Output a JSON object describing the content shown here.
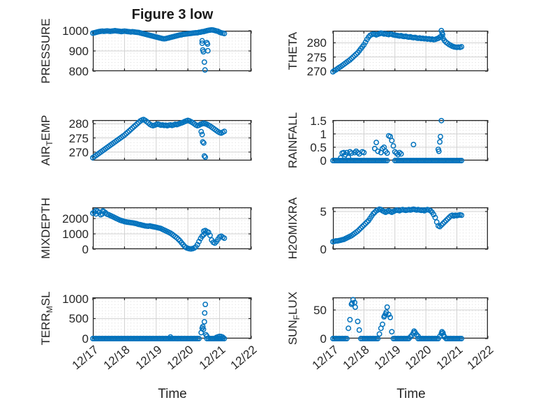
{
  "figure_title": "Figure 3 low",
  "x_axis": {
    "label": "Time",
    "ticks": [
      "12/17",
      "12/18",
      "12/19",
      "12/20",
      "12/21",
      "12/22"
    ],
    "tick_values": [
      0,
      1,
      2,
      3,
      4,
      5
    ],
    "xlim": [
      0,
      5
    ],
    "minor_step": 0.1
  },
  "marker": {
    "color": "#0072BD",
    "radius": 3.2,
    "stroke_width": 1.5
  },
  "grid": {
    "major_color": "#d0d0d0",
    "minor_color": "#d9d9d9",
    "box_color": "#262626"
  },
  "chart_data": [
    {
      "type": "scatter",
      "name": "pressure",
      "ylabel": "PRESSURE",
      "ylabel_parts": [
        [
          "PRESSURE",
          false
        ]
      ],
      "yticks": [
        {
          "v": 800,
          "label": "800"
        },
        {
          "v": 900,
          "label": "900"
        },
        {
          "v": 1000,
          "label": "1000"
        }
      ],
      "ylim": [
        800,
        1000
      ],
      "t0": 0,
      "dt": 0.05,
      "values": [
        988,
        990,
        992,
        994,
        996,
        997,
        998,
        997,
        998,
        999,
        998,
        997,
        998,
        999,
        1000,
        999,
        998,
        997,
        996,
        997,
        998,
        997,
        996,
        995,
        994,
        995,
        994,
        993,
        992,
        991,
        989,
        987,
        985,
        983,
        981,
        979,
        977,
        975,
        973,
        971,
        969,
        967,
        965,
        963,
        961,
        960,
        961,
        963,
        965,
        967,
        969,
        971,
        973,
        975,
        977,
        979,
        980,
        982,
        983,
        984,
        985,
        986,
        987,
        988,
        989,
        990,
        990,
        992,
        993,
        995,
        996,
        998,
        1000,
        1002,
        1003,
        1004,
        1003,
        1001,
        999,
        997,
        993,
        990,
        988,
        986
      ],
      "extra_points": [
        [
          3.45,
          950
        ],
        [
          3.45,
          938
        ],
        [
          3.47,
          905
        ],
        [
          3.49,
          896
        ],
        [
          3.52,
          845
        ],
        [
          3.54,
          806
        ],
        [
          3.6,
          941
        ],
        [
          3.62,
          934
        ],
        [
          3.63,
          901
        ]
      ]
    },
    {
      "type": "scatter",
      "name": "theta",
      "ylabel": "THETA",
      "ylabel_parts": [
        [
          "THETA",
          false
        ]
      ],
      "yticks": [
        {
          "v": 270,
          "label": "270"
        },
        {
          "v": 275,
          "label": "275"
        },
        {
          "v": 280,
          "label": "280"
        }
      ],
      "ylim": [
        270,
        284.25
      ],
      "t0": 0,
      "dt": 0.05,
      "values": [
        269.8,
        270.2,
        270.5,
        270.9,
        271.3,
        271.6,
        272,
        272.4,
        272.8,
        273.2,
        273.6,
        274,
        274.5,
        275,
        275.5,
        276,
        276.5,
        277.2,
        277.9,
        278.6,
        279.3,
        280.2,
        281.2,
        282,
        282.6,
        282.9,
        283.1,
        283,
        282.8,
        283,
        283.2,
        283.4,
        283.3,
        283.1,
        283.2,
        283,
        282.9,
        283.1,
        283,
        282.8,
        282.7,
        282.6,
        282.5,
        282.4,
        282.5,
        282.3,
        282.2,
        282.3,
        282.1,
        282,
        282.1,
        281.9,
        281.8,
        281.9,
        281.7,
        281.6,
        281.7,
        281.5,
        281.6,
        281.4,
        281.5,
        281.3,
        281.4,
        281.2,
        281.3,
        281.1,
        281.2,
        281.4,
        281.6,
        282,
        282.3,
        281.6,
        280.8,
        280.2,
        279.8,
        279.4,
        279.1,
        278.8,
        278.6,
        278.5,
        278.4,
        278.5,
        278.4,
        278.6
      ],
      "extra_points": [
        [
          3.5,
          284.3
        ],
        [
          3.52,
          283.5
        ],
        [
          3.54,
          282.9
        ]
      ]
    },
    {
      "type": "scatter",
      "name": "air_temp",
      "ylabel": "AIR_TEMP",
      "ylabel_parts": [
        [
          "AIR",
          false
        ],
        [
          "T",
          true
        ],
        [
          "EMP",
          false
        ]
      ],
      "yticks": [
        {
          "v": 270,
          "label": "270"
        },
        {
          "v": 275,
          "label": "275"
        },
        {
          "v": 280,
          "label": "280"
        }
      ],
      "ylim": [
        267,
        281.3
      ],
      "t0": 0,
      "dt": 0.05,
      "values": [
        268,
        268.4,
        268.8,
        269.2,
        269.6,
        270,
        270.4,
        270.8,
        271.2,
        271.6,
        272,
        272.4,
        272.8,
        273.2,
        273.6,
        274,
        274.4,
        274.8,
        275.2,
        275.6,
        276,
        276.5,
        277,
        277.5,
        278,
        278.5,
        279,
        279.5,
        280,
        280.5,
        281,
        281.3,
        281.5,
        281.2,
        280.8,
        280.3,
        279.8,
        279.5,
        279.3,
        279.5,
        279.7,
        279.9,
        279.7,
        279.5,
        279.6,
        279.4,
        279.5,
        279.3,
        279.5,
        279.6,
        279.4,
        279.6,
        279.8,
        279.7,
        279.9,
        280.1,
        280.3,
        280.5,
        280.8,
        281,
        281.2,
        281,
        280.7,
        280.4,
        280,
        279.6,
        279.3,
        279.5,
        279.8,
        280,
        280.2,
        280,
        279.8,
        279.5,
        279.2,
        278.8,
        278.4,
        278,
        277.6,
        277.2,
        276.9,
        276.7,
        277,
        277.3
      ],
      "extra_points": [
        [
          3.42,
          277.2
        ],
        [
          3.45,
          276.2
        ],
        [
          3.47,
          273.6
        ],
        [
          3.5,
          273.2
        ],
        [
          3.52,
          268.6
        ],
        [
          3.55,
          268.2
        ]
      ]
    },
    {
      "type": "scatter",
      "name": "rainfall",
      "ylabel": "RAINFALL",
      "ylabel_parts": [
        [
          "RAINFALL",
          false
        ]
      ],
      "yticks": [
        {
          "v": 0,
          "label": "0"
        },
        {
          "v": 0.5,
          "label": "0.5"
        },
        {
          "v": 1,
          "label": "1"
        },
        {
          "v": 1.5,
          "label": "1.5"
        }
      ],
      "ylim": [
        0,
        1.52
      ],
      "t0": 0,
      "dt": 0.05,
      "values": [
        0,
        0,
        0,
        0,
        0,
        0,
        0,
        0,
        0,
        0,
        0,
        0,
        0,
        0,
        0,
        0,
        0,
        0,
        0,
        0,
        0,
        0,
        0,
        0,
        0,
        0,
        0,
        0,
        0,
        0,
        0,
        0,
        0,
        0,
        0,
        0,
        null,
        null,
        null,
        null,
        0,
        0,
        0,
        0,
        0,
        0,
        0,
        0,
        0,
        0,
        0,
        0,
        0,
        0,
        0,
        0,
        0,
        0,
        0,
        0,
        0,
        0,
        0,
        0,
        0,
        0,
        0,
        0,
        0,
        0,
        0,
        0,
        0,
        0,
        0,
        0,
        0,
        0,
        0,
        0,
        0,
        0,
        0,
        0
      ],
      "extra_points": [
        [
          0.25,
          0.1
        ],
        [
          0.3,
          0.28
        ],
        [
          0.35,
          0.3
        ],
        [
          0.4,
          0.22
        ],
        [
          0.45,
          0.3
        ],
        [
          0.5,
          0.12
        ],
        [
          0.55,
          0.33
        ],
        [
          0.6,
          0.28
        ],
        [
          0.7,
          0.3
        ],
        [
          0.75,
          0.35
        ],
        [
          0.8,
          0.3
        ],
        [
          0.85,
          0.25
        ],
        [
          0.95,
          0.33
        ],
        [
          1.0,
          0.3
        ],
        [
          1.35,
          0.45
        ],
        [
          1.4,
          0.68
        ],
        [
          1.45,
          0.35
        ],
        [
          1.55,
          0.3
        ],
        [
          1.6,
          0.45
        ],
        [
          1.65,
          0.5
        ],
        [
          1.7,
          0.35
        ],
        [
          1.75,
          0.28
        ],
        [
          1.8,
          0.93
        ],
        [
          1.85,
          0.9
        ],
        [
          1.9,
          0.75
        ],
        [
          1.95,
          0.55
        ],
        [
          2.0,
          0.33
        ],
        [
          2.05,
          0.28
        ],
        [
          2.1,
          0.22
        ],
        [
          2.15,
          0.3
        ],
        [
          2.2,
          0.25
        ],
        [
          2.6,
          0.6
        ],
        [
          3.4,
          0.42
        ],
        [
          3.42,
          0.35
        ],
        [
          3.45,
          0.7
        ],
        [
          3.47,
          0.9
        ],
        [
          3.5,
          1.5
        ]
      ]
    },
    {
      "type": "scatter",
      "name": "mixdepth",
      "ylabel": "MIXDEPTH",
      "ylabel_parts": [
        [
          "MIXDEPTH",
          false
        ]
      ],
      "yticks": [
        {
          "v": 0,
          "label": "0"
        },
        {
          "v": 1000,
          "label": "1000"
        },
        {
          "v": 2000,
          "label": "2000"
        }
      ],
      "ylim": [
        0,
        2730
      ],
      "t0": 0,
      "dt": 0.05,
      "values": [
        2350,
        2420,
        2300,
        2480,
        2400,
        2250,
        2300,
        2450,
        2380,
        2280,
        2250,
        2200,
        2150,
        2100,
        2050,
        2000,
        1950,
        1900,
        1870,
        1840,
        1800,
        1780,
        1760,
        1750,
        1730,
        1720,
        1700,
        1680,
        1650,
        1620,
        1600,
        1570,
        1550,
        1520,
        1510,
        1500,
        1520,
        1490,
        1470,
        1450,
        1430,
        1400,
        1380,
        1350,
        1300,
        1250,
        1200,
        1150,
        1100,
        1050,
        980,
        900,
        820,
        750,
        650,
        550,
        420,
        300,
        180,
        100,
        60,
        30,
        20,
        40,
        80,
        150,
        300,
        500,
        700,
        850,
        950,
        1050,
        1150,
        1100,
        900,
        600,
        450,
        400,
        500,
        650,
        800,
        850,
        780,
        720
      ],
      "extra_points": [
        [
          0.1,
          2520
        ],
        [
          0.32,
          2500
        ],
        [
          3.5,
          1180
        ],
        [
          3.55,
          1220
        ]
      ]
    },
    {
      "type": "scatter",
      "name": "h2omixra",
      "ylabel": "H2OMIXRA",
      "ylabel_parts": [
        [
          "H2OMIXRA",
          false
        ]
      ],
      "yticks": [
        {
          "v": 0,
          "label": "0"
        },
        {
          "v": 5,
          "label": "5"
        }
      ],
      "ylim": [
        0,
        5.55
      ],
      "t0": 0,
      "dt": 0.05,
      "values": [
        1,
        1.05,
        1.1,
        1.1,
        1.15,
        1.2,
        1.25,
        1.3,
        1.4,
        1.5,
        1.6,
        1.7,
        1.8,
        1.95,
        2.1,
        2.25,
        2.4,
        2.6,
        2.8,
        3,
        3.2,
        3.4,
        3.6,
        3.8,
        4.1,
        4.4,
        4.7,
        4.9,
        5.1,
        5.2,
        5.3,
        5.25,
        5.1,
        5,
        4.9,
        5,
        5.1,
        5,
        4.9,
        5,
        5.1,
        5.2,
        5.15,
        5.1,
        5.2,
        5.25,
        5.2,
        5.15,
        5.2,
        5.25,
        5.2,
        5.25,
        5.3,
        5.25,
        5.2,
        5.25,
        5.2,
        5.15,
        5.2,
        5.1,
        5.2,
        5.25,
        5.2,
        5.1,
        4.9,
        4.6,
        4.2,
        3.6,
        3.1,
        3,
        3.2,
        3.4,
        3.6,
        3.8,
        4,
        4.2,
        4.4,
        4.5,
        4.4,
        4.5,
        4.45,
        4.5,
        4.55,
        4.5
      ],
      "extra_points": []
    },
    {
      "type": "scatter",
      "name": "terr_msl",
      "ylabel": "TERR_MSL",
      "ylabel_parts": [
        [
          "TERR",
          false
        ],
        [
          "M",
          true
        ],
        [
          "SL",
          false
        ]
      ],
      "yticks": [
        {
          "v": 0,
          "label": "0"
        },
        {
          "v": 500,
          "label": "500"
        },
        {
          "v": 1000,
          "label": "1000"
        }
      ],
      "ylim": [
        0,
        1030
      ],
      "t0": 0,
      "dt": 0.05,
      "values": [
        0,
        0,
        0,
        0,
        0,
        0,
        0,
        0,
        0,
        0,
        0,
        0,
        0,
        0,
        0,
        0,
        0,
        0,
        0,
        0,
        0,
        0,
        0,
        0,
        0,
        0,
        0,
        0,
        0,
        0,
        0,
        0,
        0,
        0,
        0,
        0,
        0,
        0,
        0,
        0,
        0,
        0,
        0,
        0,
        0,
        0,
        0,
        0,
        0,
        0,
        0,
        0,
        0,
        0,
        0,
        0,
        0,
        0,
        0,
        0,
        0,
        0,
        0,
        0,
        0,
        0,
        0,
        0,
        null,
        null,
        null,
        null,
        0,
        0,
        0,
        0,
        0,
        0,
        0,
        0,
        0,
        0,
        0,
        0
      ],
      "extra_points": [
        [
          2.45,
          40
        ],
        [
          3.42,
          150
        ],
        [
          3.45,
          260
        ],
        [
          3.47,
          300
        ],
        [
          3.49,
          230
        ],
        [
          3.52,
          420
        ],
        [
          3.53,
          640
        ],
        [
          3.55,
          855
        ],
        [
          3.57,
          95
        ],
        [
          3.6,
          60
        ],
        [
          3.9,
          30
        ],
        [
          3.95,
          45
        ],
        [
          4.0,
          55
        ],
        [
          4.05,
          50
        ],
        [
          4.1,
          35
        ]
      ]
    },
    {
      "type": "scatter",
      "name": "sun_flux",
      "ylabel": "SUN_FLUX",
      "ylabel_parts": [
        [
          "SUN",
          false
        ],
        [
          "F",
          true
        ],
        [
          "LUX",
          false
        ]
      ],
      "yticks": [
        {
          "v": 0,
          "label": "0"
        },
        {
          "v": 50,
          "label": "50"
        }
      ],
      "ylim": [
        0,
        72
      ],
      "t0": 0,
      "dt": 0.05,
      "values": [
        0,
        0,
        0,
        0,
        0,
        0,
        0,
        0,
        0,
        0,
        null,
        null,
        null,
        null,
        null,
        null,
        null,
        null,
        0,
        0,
        0,
        0,
        0,
        0,
        0,
        0,
        0,
        0,
        0,
        0,
        null,
        null,
        null,
        null,
        null,
        null,
        null,
        null,
        null,
        0,
        0,
        0,
        0,
        0,
        0,
        0,
        0,
        0,
        0,
        0,
        null,
        null,
        null,
        null,
        null,
        0,
        0,
        0,
        0,
        0,
        0,
        0,
        0,
        0,
        0,
        0,
        0,
        0,
        0,
        null,
        null,
        null,
        null,
        0,
        0,
        0,
        0,
        0,
        0,
        0,
        0,
        0,
        0,
        0
      ],
      "extra_points": [
        [
          0.5,
          18
        ],
        [
          0.55,
          33
        ],
        [
          0.6,
          60
        ],
        [
          0.62,
          62
        ],
        [
          0.65,
          68
        ],
        [
          0.7,
          63
        ],
        [
          0.72,
          55
        ],
        [
          0.8,
          30
        ],
        [
          0.85,
          15
        ],
        [
          1.5,
          8
        ],
        [
          1.55,
          18
        ],
        [
          1.6,
          25
        ],
        [
          1.65,
          38
        ],
        [
          1.67,
          40
        ],
        [
          1.7,
          43
        ],
        [
          1.72,
          46
        ],
        [
          1.75,
          55
        ],
        [
          1.8,
          42
        ],
        [
          1.85,
          37
        ],
        [
          1.9,
          12
        ],
        [
          2.5,
          3
        ],
        [
          2.55,
          6
        ],
        [
          2.6,
          10
        ],
        [
          2.62,
          13
        ],
        [
          2.65,
          11
        ],
        [
          2.7,
          7
        ],
        [
          2.75,
          4
        ],
        [
          3.45,
          4
        ],
        [
          3.5,
          9
        ],
        [
          3.52,
          12
        ],
        [
          3.55,
          10
        ],
        [
          3.57,
          6
        ],
        [
          3.6,
          3
        ]
      ]
    }
  ]
}
